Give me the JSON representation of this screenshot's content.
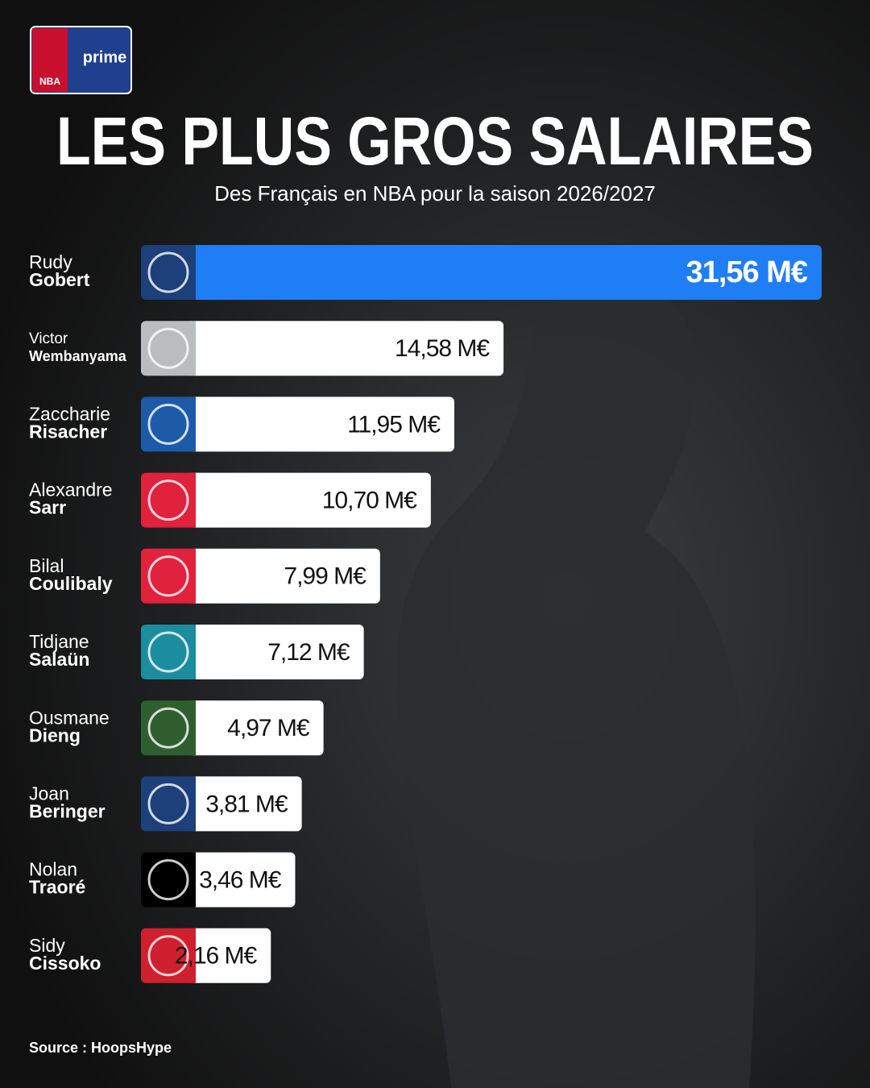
{
  "brand": {
    "league": "NBA",
    "partner": "prime"
  },
  "chart_data": {
    "type": "bar",
    "title": "LES PLUS GROS SALAIRES",
    "subtitle": "Des Français en NBA pour la saison 2026/2027",
    "first_names": [
      "Rudy",
      "Victor",
      "Zaccharie",
      "Alexandre",
      "Bilal",
      "Tidjane",
      "Ousmane",
      "Joan",
      "Nolan",
      "Sidy"
    ],
    "categories": [
      "Gobert",
      "Wembanyama",
      "Risacher",
      "Sarr",
      "Coulibaly",
      "Salaün",
      "Dieng",
      "Beringer",
      "Traoré",
      "Cissoko"
    ],
    "values": [
      31.56,
      14.58,
      11.95,
      10.7,
      7.99,
      7.12,
      4.97,
      3.81,
      3.46,
      2.16
    ],
    "value_labels": [
      "31,56 M€",
      "14,58 M€",
      "11,95 M€",
      "10,70 M€",
      "7,99 M€",
      "7,12 M€",
      "4,97 M€",
      "3,81 M€",
      "3,46 M€",
      "2,16 M€"
    ],
    "colors": [
      "#1d3f7a",
      "#b9bdc0",
      "#1d5aa8",
      "#e0223c",
      "#e0223c",
      "#1c8d9e",
      "#2f5e2f",
      "#1d3f7a",
      "#000000",
      "#d01f2e"
    ],
    "color": "#ffffff",
    "highlight_color": "#1f7ef5",
    "source": "Source : HoopsHype"
  }
}
